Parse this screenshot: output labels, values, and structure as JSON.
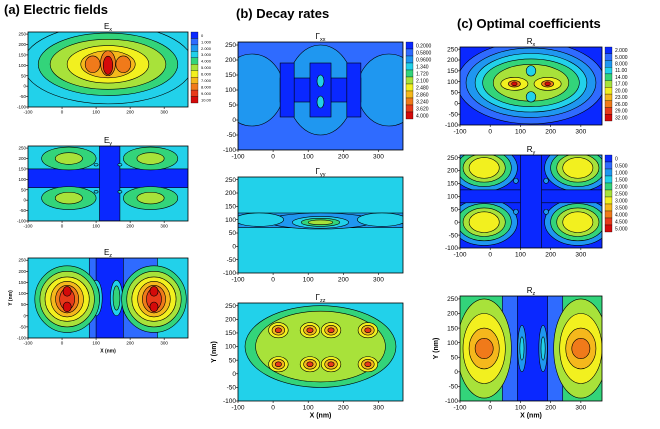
{
  "columns": [
    {
      "title": "(a) Electric fields",
      "panels": [
        {
          "label": "E",
          "sub": "x",
          "scale": [
            "0",
            "1.000",
            "2.000",
            "3.000",
            "4.000",
            "5.000",
            "6.000",
            "7.000",
            "8.000",
            "9.000",
            "10.00"
          ],
          "xticks": [
            "-100",
            "0",
            "100",
            "200",
            "300"
          ],
          "yticks": [
            "-100",
            "-50",
            "0",
            "50",
            "100",
            "150",
            "200",
            "250"
          ],
          "ylabel": "",
          "xlabel": ""
        },
        {
          "label": "E",
          "sub": "y",
          "scale": [],
          "xticks": [
            "-100",
            "0",
            "100",
            "200",
            "300"
          ],
          "yticks": [
            "-100",
            "-50",
            "0",
            "50",
            "100",
            "150",
            "200",
            "250"
          ],
          "ylabel": "",
          "xlabel": ""
        },
        {
          "label": "E",
          "sub": "z",
          "scale": [],
          "xticks": [
            "-100",
            "0",
            "100",
            "200",
            "300"
          ],
          "yticks": [
            "-100",
            "-50",
            "0",
            "50",
            "100",
            "150",
            "200",
            "250"
          ],
          "ylabel": "Y (nm)",
          "xlabel": "X (nm)"
        }
      ]
    },
    {
      "title": "(b) Decay rates",
      "panels": [
        {
          "label": "Γ",
          "sub": "xx",
          "scale": [
            "0.2000",
            "0.5800",
            "0.9600",
            "1.340",
            "1.720",
            "2.100",
            "2.480",
            "2.860",
            "3.240",
            "3.620",
            "4.000"
          ],
          "xticks": [
            "-100",
            "0",
            "100",
            "200",
            "300"
          ],
          "yticks": [
            "-100",
            "-50",
            "0",
            "50",
            "100",
            "150",
            "200",
            "250"
          ],
          "ylabel": "",
          "xlabel": ""
        },
        {
          "label": "Γ",
          "sub": "yy",
          "scale": [],
          "xticks": [
            "-100",
            "0",
            "100",
            "200",
            "300"
          ],
          "yticks": [
            "-100",
            "-50",
            "0",
            "50",
            "100",
            "150",
            "200",
            "250"
          ],
          "ylabel": "",
          "xlabel": ""
        },
        {
          "label": "Γ",
          "sub": "zz",
          "scale": [],
          "xticks": [
            "-100",
            "0",
            "100",
            "200",
            "300"
          ],
          "yticks": [
            "-100",
            "-50",
            "0",
            "50",
            "100",
            "150",
            "200",
            "250"
          ],
          "ylabel": "Y (nm)",
          "xlabel": "X (nm)"
        }
      ]
    },
    {
      "title": "(c) Optimal coefficients",
      "panels": [
        {
          "label": "R",
          "sub": "x",
          "scale": [
            "2.000",
            "5.000",
            "8.000",
            "11.00",
            "14.00",
            "17.00",
            "20.00",
            "23.00",
            "26.00",
            "29.00",
            "32.00"
          ],
          "xticks": [
            "-100",
            "0",
            "100",
            "200",
            "300"
          ],
          "yticks": [
            "-100",
            "-50",
            "0",
            "50",
            "100",
            "150",
            "200",
            "250"
          ],
          "ylabel": "",
          "xlabel": ""
        },
        {
          "label": "R",
          "sub": "y",
          "scale": [
            "0",
            "0.500",
            "1.000",
            "1.500",
            "2.000",
            "2.500",
            "3.000",
            "3.500",
            "4.000",
            "4.500",
            "5.000"
          ],
          "xticks": [
            "-100",
            "0",
            "100",
            "200",
            "300"
          ],
          "yticks": [
            "-100",
            "-50",
            "0",
            "50",
            "100",
            "150",
            "200",
            "250"
          ],
          "ylabel": "",
          "xlabel": ""
        },
        {
          "label": "R",
          "sub": "z",
          "scale": [],
          "xticks": [
            "-100",
            "0",
            "100",
            "200",
            "300"
          ],
          "yticks": [
            "-100",
            "-50",
            "0",
            "50",
            "100",
            "150",
            "200",
            "250"
          ],
          "ylabel": "Y (nm)",
          "xlabel": "X (nm)"
        }
      ]
    }
  ],
  "colors": {
    "levels": [
      "#000000",
      "#0a28ff",
      "#2f6bff",
      "#1f97f0",
      "#22d1ea",
      "#33d47a",
      "#a8e23a",
      "#f2f01f",
      "#f5b81c",
      "#f07a1a",
      "#e83a1a",
      "#d40a0a"
    ],
    "background_blue": "#0a28ff",
    "background_cyan": "#22d1ea",
    "background_light": "#9edff3"
  }
}
